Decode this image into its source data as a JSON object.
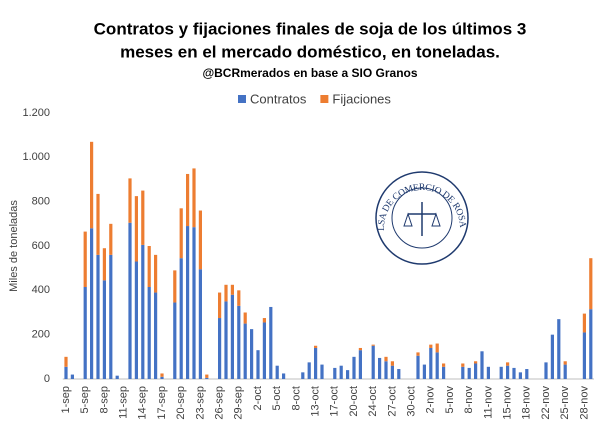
{
  "chart_data": {
    "type": "stacked_bar",
    "title": [
      "Contratos y fijaciones finales de soja de los últimos 3",
      "meses en el mercado doméstico, en toneladas."
    ],
    "subtitle": "@BCRmerados en base a SIO Granos",
    "y_label": "Miles de toneladas",
    "categories": [
      "1-sep",
      null,
      null,
      "5-sep",
      null,
      null,
      "8-sep",
      null,
      null,
      "11-sep",
      null,
      null,
      "14-sep",
      null,
      null,
      "17-sep",
      null,
      null,
      "20-sep",
      null,
      null,
      "23-sep",
      null,
      null,
      "26-sep",
      null,
      null,
      "29-sep",
      null,
      null,
      "2-oct",
      null,
      null,
      "5-oct",
      null,
      null,
      "8-oct",
      null,
      null,
      "13-oct",
      null,
      null,
      "17-oct",
      null,
      null,
      "20-oct",
      null,
      null,
      "24-oct",
      null,
      null,
      "27-oct",
      null,
      null,
      "30-oct",
      null,
      null,
      "2-nov",
      null,
      null,
      "5-nov",
      null,
      null,
      "8-nov",
      null,
      null,
      "11-nov",
      null,
      null,
      "15-nov",
      null,
      null,
      "18-nov",
      null,
      null,
      "22-nov",
      null,
      null,
      "25-nov",
      null,
      null,
      "28-nov",
      null
    ],
    "series": [
      {
        "name": "Contratos",
        "color": "#4472c4",
        "values": [
          55,
          20,
          0,
          415,
          680,
          560,
          445,
          560,
          15,
          0,
          705,
          530,
          605,
          415,
          390,
          10,
          0,
          345,
          545,
          690,
          685,
          495,
          5,
          0,
          275,
          350,
          380,
          330,
          250,
          225,
          130,
          255,
          325,
          60,
          25,
          0,
          0,
          30,
          75,
          140,
          65,
          0,
          50,
          60,
          40,
          100,
          130,
          0,
          150,
          95,
          80,
          60,
          45,
          0,
          0,
          105,
          65,
          140,
          120,
          55,
          0,
          0,
          55,
          50,
          70,
          125,
          55,
          0,
          55,
          60,
          50,
          30,
          45,
          0,
          0,
          75,
          200,
          270,
          65,
          0,
          0,
          210,
          315
        ]
      },
      {
        "name": "Fijaciones",
        "color": "#ed7d31",
        "values": [
          45,
          0,
          0,
          250,
          390,
          275,
          145,
          140,
          0,
          0,
          200,
          295,
          245,
          185,
          170,
          15,
          0,
          145,
          225,
          235,
          265,
          265,
          15,
          0,
          115,
          75,
          45,
          70,
          50,
          0,
          0,
          20,
          0,
          0,
          0,
          0,
          0,
          0,
          0,
          10,
          0,
          0,
          0,
          0,
          0,
          0,
          10,
          0,
          5,
          0,
          20,
          20,
          0,
          0,
          0,
          15,
          0,
          15,
          40,
          15,
          0,
          0,
          15,
          0,
          10,
          0,
          0,
          0,
          0,
          15,
          0,
          0,
          0,
          0,
          0,
          0,
          0,
          0,
          15,
          0,
          0,
          85,
          230
        ]
      }
    ],
    "ylim": [
      0,
      1200
    ],
    "yticks": [
      0,
      200,
      400,
      600,
      800,
      {
        "value": 1000,
        "label": "1.000"
      },
      {
        "value": 1200,
        "label": "1.200"
      }
    ],
    "grid": false,
    "legend": "top-right"
  },
  "logo_text": "BOLSA DE COMERCIO DE ROSARIO"
}
